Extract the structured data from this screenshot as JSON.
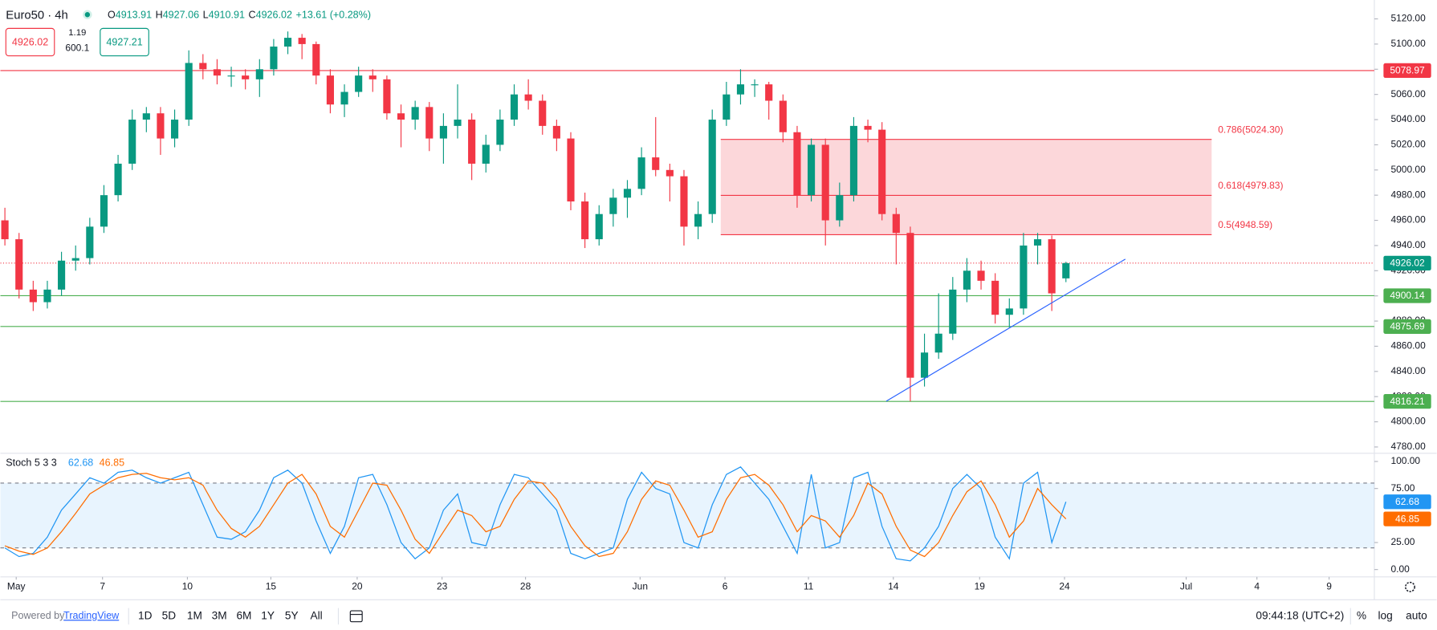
{
  "header": {
    "symbol": "Euro50 · 4h",
    "change": "+13.61 (+0.28%)"
  },
  "order_panel": {
    "sell": "4926.02",
    "spread": "1.19",
    "volume": "600.1",
    "buy": "4927.21"
  },
  "footer": {
    "powered": "Powered by",
    "brand": "TradingView",
    "ranges": [
      "1D",
      "5D",
      "1M",
      "3M",
      "6M",
      "1Y",
      "5Y",
      "All"
    ],
    "clock": "09:44:18 (UTC+2)",
    "percent": "%",
    "log": "log",
    "auto": "auto"
  },
  "chart_data": [
    {
      "type": "candlestick",
      "up_color": "#089981",
      "down_color": "#f23645",
      "ohlc_keys": [
        "O",
        "H",
        "L",
        "C"
      ],
      "open": [
        4960,
        4945,
        4905,
        4895,
        4905,
        4928,
        4930,
        4955,
        4980,
        5005,
        5040,
        5045,
        5025,
        5040,
        5085,
        5080,
        5075,
        5075,
        5072,
        5080,
        5098,
        5105,
        5100,
        5075,
        5052,
        5062,
        5075,
        5072,
        5045,
        5040,
        5050,
        5025,
        5035,
        5040,
        5005,
        5020,
        5040,
        5060,
        5055,
        5035,
        5025,
        4975,
        4945,
        4965,
        4978,
        4985,
        5010,
        5000,
        4995,
        4955,
        4965,
        5040,
        5060,
        5068,
        5068,
        5055,
        5030,
        4980,
        5020,
        4960,
        4980,
        5035,
        5032,
        4965,
        4950,
        4835,
        4855,
        4870,
        4905,
        4920,
        4912,
        4885,
        4890,
        4940,
        4945,
        4913.91
      ],
      "high": [
        4970,
        4950,
        4912,
        4912,
        4935,
        4940,
        4962,
        4988,
        5012,
        5048,
        5050,
        5050,
        5048,
        5095,
        5092,
        5088,
        5082,
        5080,
        5088,
        5104,
        5110,
        5108,
        5102,
        5080,
        5068,
        5082,
        5080,
        5075,
        5052,
        5055,
        5054,
        5045,
        5068,
        5045,
        5028,
        5048,
        5068,
        5072,
        5060,
        5040,
        5030,
        4982,
        4972,
        4985,
        4992,
        5018,
        5042,
        5005,
        5000,
        4975,
        5048,
        5070,
        5080,
        5072,
        5070,
        5060,
        5035,
        5025,
        5025,
        4990,
        5042,
        5040,
        5038,
        4970,
        4955,
        4870,
        4902,
        4915,
        4930,
        4928,
        4918,
        4898,
        4950,
        4950,
        4948,
        4927.06
      ],
      "low": [
        4940,
        4898,
        4888,
        4890,
        4900,
        4920,
        4925,
        4950,
        4975,
        5000,
        5030,
        5012,
        5018,
        5035,
        5072,
        5068,
        5066,
        5064,
        5058,
        5075,
        5092,
        5088,
        5068,
        5045,
        5042,
        5058,
        5062,
        5040,
        5018,
        5032,
        5015,
        5005,
        5025,
        4992,
        4998,
        5015,
        5035,
        5048,
        5028,
        5015,
        4968,
        4938,
        4940,
        4955,
        4962,
        4980,
        4995,
        4975,
        4940,
        4945,
        4958,
        5035,
        5052,
        5058,
        5040,
        5022,
        4970,
        4975,
        4940,
        4955,
        4975,
        5022,
        4960,
        4925,
        4816.21,
        4828,
        4850,
        4865,
        4895,
        4905,
        4878,
        4875,
        4885,
        4925,
        4888,
        4910.91
      ],
      "close": [
        4945,
        4905,
        4895,
        4905,
        4928,
        4930,
        4955,
        4980,
        5005,
        5040,
        5045,
        5025,
        5040,
        5085,
        5080,
        5075,
        5075,
        5072,
        5080,
        5098,
        5105,
        5100,
        5075,
        5052,
        5062,
        5075,
        5072,
        5045,
        5040,
        5050,
        5025,
        5035,
        5040,
        5005,
        5020,
        5040,
        5060,
        5055,
        5035,
        5025,
        4975,
        4945,
        4965,
        4978,
        4985,
        5010,
        5000,
        4995,
        4955,
        4965,
        5040,
        5060,
        5068,
        5068,
        5055,
        5030,
        4980,
        5020,
        4960,
        4980,
        5035,
        5032,
        4965,
        4950,
        4835,
        4855,
        4870,
        4905,
        4920,
        4912,
        4885,
        4890,
        4940,
        4945,
        4902,
        4926.02
      ],
      "xlim": [
        -0.32,
        96.8
      ],
      "xticks": [
        {
          "value": 0.8,
          "label": "May"
        },
        {
          "value": 6.9,
          "label": "7"
        },
        {
          "value": 12.9,
          "label": "10"
        },
        {
          "value": 18.8,
          "label": "15"
        },
        {
          "value": 24.9,
          "label": "20"
        },
        {
          "value": 30.9,
          "label": "23"
        },
        {
          "value": 36.8,
          "label": "28"
        },
        {
          "value": 44.9,
          "label": "Jun"
        },
        {
          "value": 50.9,
          "label": "6"
        },
        {
          "value": 56.8,
          "label": "11"
        },
        {
          "value": 62.8,
          "label": "14"
        },
        {
          "value": 68.9,
          "label": "19"
        },
        {
          "value": 74.9,
          "label": "24"
        },
        {
          "value": 83.5,
          "label": "Jul"
        },
        {
          "value": 88.5,
          "label": "4"
        },
        {
          "value": 93.6,
          "label": "9"
        }
      ],
      "ylim": [
        4775,
        5135
      ],
      "yticks": [
        {
          "value": 5120,
          "label": "5120.00"
        },
        {
          "value": 5100,
          "label": "5100.00"
        },
        {
          "value": 5080,
          "label": "5080.00"
        },
        {
          "value": 5060,
          "label": "5060.00"
        },
        {
          "value": 5040,
          "label": "5040.00"
        },
        {
          "value": 5020,
          "label": "5020.00"
        },
        {
          "value": 5000,
          "label": "5000.00"
        },
        {
          "value": 4980,
          "label": "4980.00"
        },
        {
          "value": 4960,
          "label": "4960.00"
        },
        {
          "value": 4940,
          "label": "4940.00"
        },
        {
          "value": 4920,
          "label": "4920.00"
        },
        {
          "value": 4900,
          "label": "4900.00"
        },
        {
          "value": 4880,
          "label": "4880.00"
        },
        {
          "value": 4860,
          "label": "4860.00"
        },
        {
          "value": 4840,
          "label": "4840.00"
        },
        {
          "value": 4820,
          "label": "4820.00"
        },
        {
          "value": 4800,
          "label": "4800.00"
        },
        {
          "value": 4780,
          "label": "4780.00"
        }
      ],
      "levels": [
        {
          "value": 5078.97,
          "color": "#f23645"
        },
        {
          "value": 4900.14,
          "color": "#4caf50"
        },
        {
          "value": 4875.69,
          "color": "#4caf50"
        },
        {
          "value": 4816.21,
          "color": "#4caf50"
        }
      ],
      "last_price_color": "#089981",
      "fib": {
        "x": [
          50.6,
          85.3
        ],
        "color": "#f23645",
        "levels": [
          {
            "value": 5024.3,
            "label": "0.786(5024.30)"
          },
          {
            "value": 4979.83,
            "label": "0.618(4979.83)"
          },
          {
            "value": 4948.59,
            "label": "0.5(4948.59)"
          }
        ]
      },
      "trendline": {
        "x": [
          62.3,
          79.2
        ],
        "y": [
          4816.4,
          4929.2
        ],
        "color": "#2962ff"
      }
    },
    {
      "type": "line",
      "title": "Stoch 5 3 3",
      "ylim": [
        -6.8,
        107.6
      ],
      "yticks": [
        {
          "value": 100,
          "label": "100.00"
        },
        {
          "value": 75,
          "label": "75.00"
        },
        {
          "value": 25,
          "label": "25.00"
        },
        {
          "value": 0,
          "label": "0.00"
        }
      ],
      "band": [
        20,
        80
      ],
      "series": [
        {
          "color": "#2196f3",
          "values": [
            20,
            12,
            15,
            30,
            55,
            70,
            85,
            80,
            90,
            92,
            85,
            80,
            85,
            90,
            60,
            30,
            28,
            35,
            55,
            85,
            92,
            80,
            45,
            15,
            40,
            85,
            88,
            60,
            25,
            10,
            20,
            55,
            70,
            25,
            22,
            60,
            88,
            85,
            70,
            55,
            15,
            10,
            15,
            20,
            65,
            90,
            75,
            70,
            25,
            20,
            60,
            88,
            95,
            80,
            65,
            40,
            15,
            88,
            20,
            25,
            85,
            90,
            40,
            10,
            8,
            20,
            40,
            75,
            88,
            75,
            30,
            10,
            80,
            90,
            25,
            62.68
          ]
        },
        {
          "color": "#ff6d00",
          "values": [
            22,
            17,
            14,
            20,
            35,
            52,
            70,
            78,
            85,
            88,
            89,
            85,
            83,
            85,
            78,
            55,
            38,
            30,
            40,
            60,
            80,
            88,
            70,
            40,
            30,
            55,
            80,
            78,
            55,
            28,
            15,
            35,
            55,
            50,
            35,
            40,
            65,
            82,
            80,
            65,
            40,
            22,
            12,
            15,
            35,
            65,
            82,
            78,
            55,
            30,
            35,
            65,
            85,
            88,
            78,
            60,
            35,
            50,
            45,
            30,
            50,
            80,
            70,
            40,
            18,
            12,
            25,
            50,
            72,
            82,
            60,
            30,
            45,
            75,
            60,
            46.85
          ]
        }
      ]
    }
  ]
}
